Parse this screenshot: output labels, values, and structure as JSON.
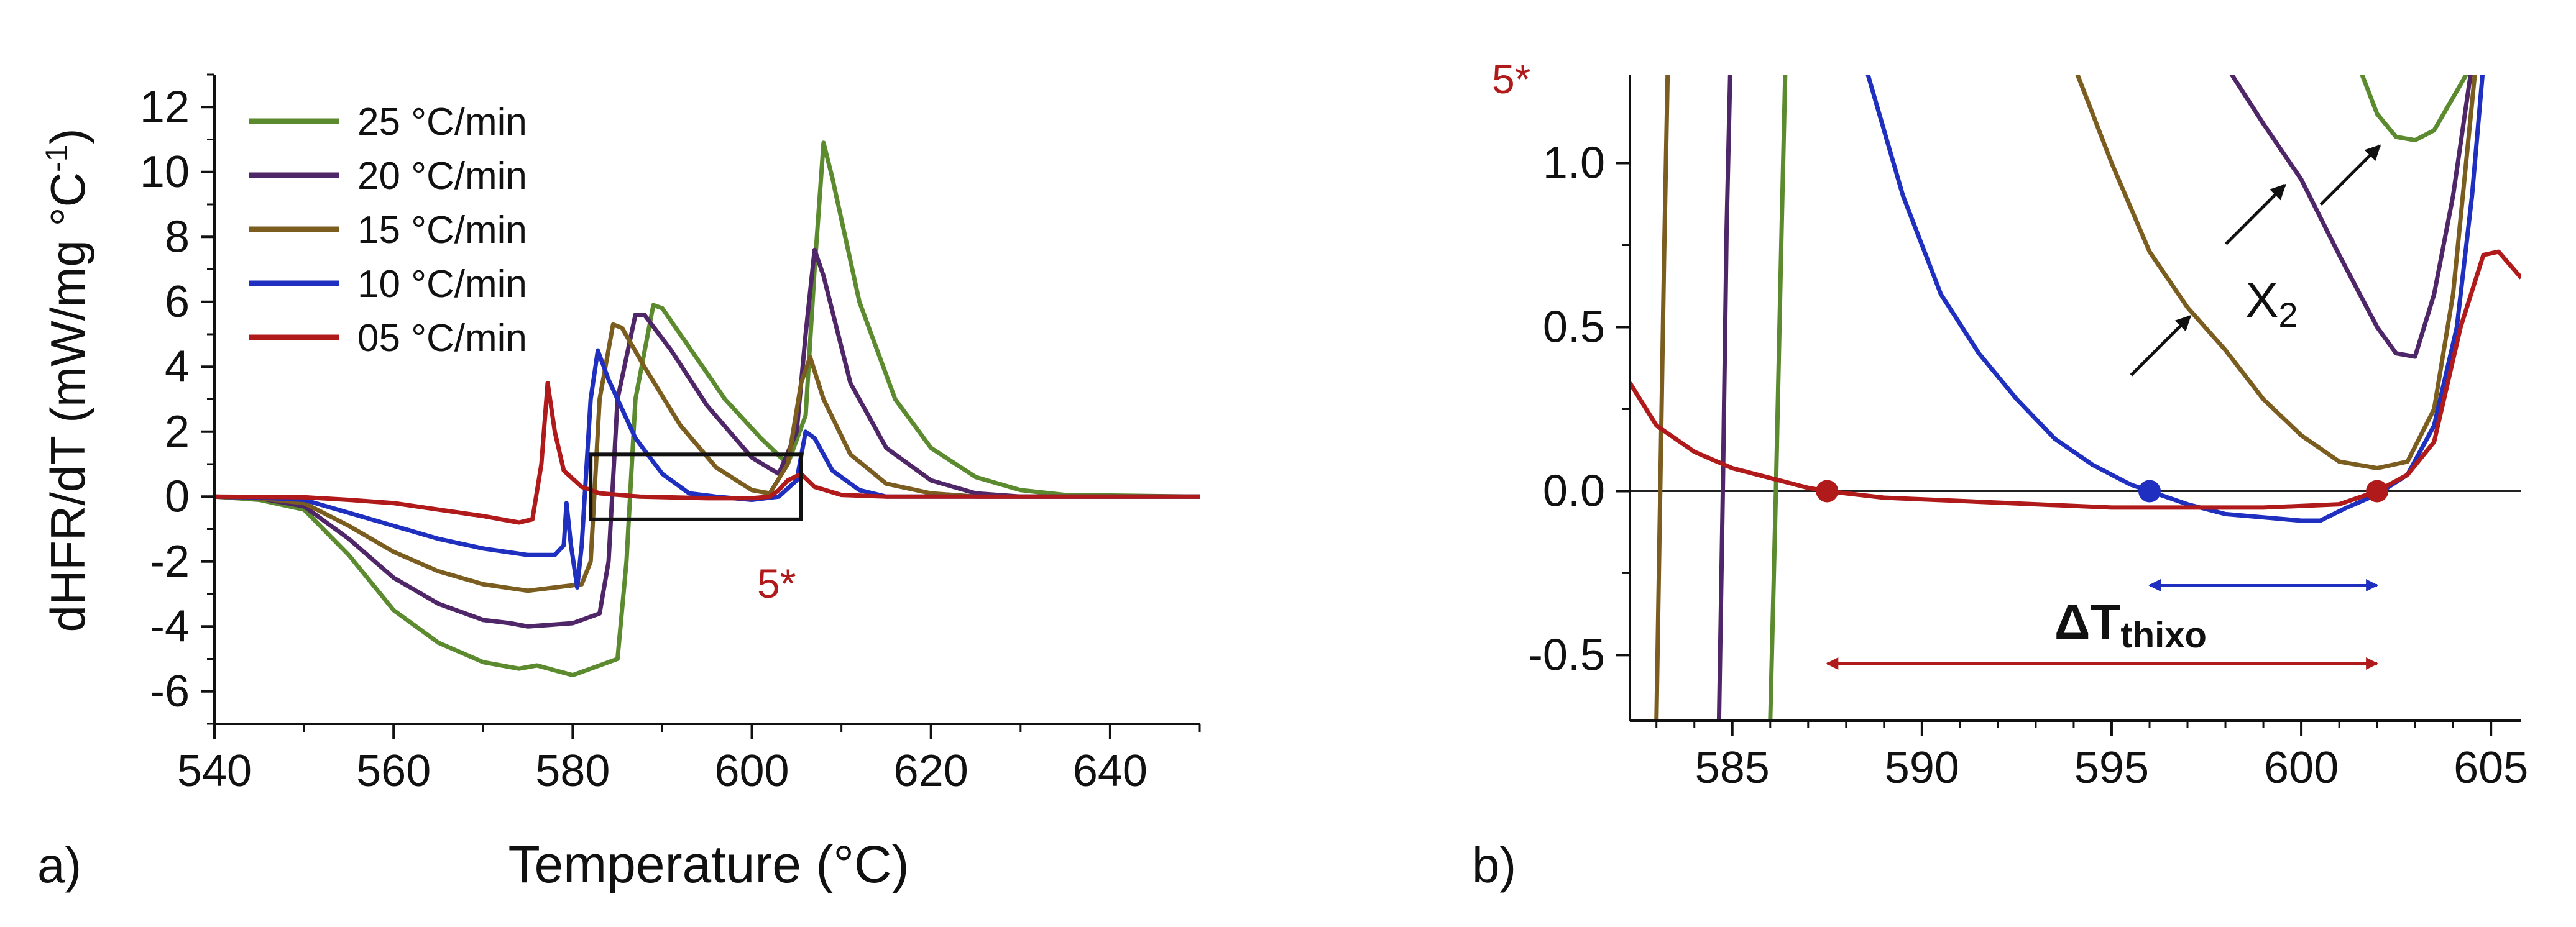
{
  "figure": {
    "panel_a_label": "a)",
    "panel_b_label": "b)"
  },
  "chart_data": [
    {
      "panel": "a",
      "type": "line",
      "xlabel": "Temperature (°C)",
      "ylabel_main": "dHFR/dT (mW/mg °C",
      "ylabel_sup": "-1",
      "ylabel_close": ")",
      "xlim": [
        540,
        650
      ],
      "ylim": [
        -7,
        13
      ],
      "xticks": [
        540,
        560,
        580,
        600,
        620,
        640
      ],
      "yticks": [
        12,
        10,
        8,
        6,
        4,
        2,
        0,
        -2,
        -4,
        -6
      ],
      "legend_position": "top-left",
      "annotation": "5*",
      "zoom_box": {
        "x": [
          582,
          605.5
        ],
        "y": [
          -0.7,
          1.3
        ]
      },
      "series": [
        {
          "name": "25 °C/min",
          "color": "#5c8a2e",
          "points": [
            [
              540,
              0
            ],
            [
              545,
              -0.1
            ],
            [
              550,
              -0.4
            ],
            [
              555,
              -1.8
            ],
            [
              560,
              -3.5
            ],
            [
              565,
              -4.5
            ],
            [
              570,
              -5.1
            ],
            [
              574,
              -5.3
            ],
            [
              576,
              -5.2
            ],
            [
              580,
              -5.5
            ],
            [
              583,
              -5.2
            ],
            [
              585,
              -5.0
            ],
            [
              586,
              -2.0
            ],
            [
              587,
              3.0
            ],
            [
              589,
              5.9
            ],
            [
              590,
              5.8
            ],
            [
              593,
              4.6
            ],
            [
              597,
              3.0
            ],
            [
              601,
              1.8
            ],
            [
              604,
              1.0
            ],
            [
              606,
              2.5
            ],
            [
              607,
              7.0
            ],
            [
              608,
              10.9
            ],
            [
              609,
              9.8
            ],
            [
              612,
              6.0
            ],
            [
              616,
              3.0
            ],
            [
              620,
              1.5
            ],
            [
              625,
              0.6
            ],
            [
              630,
              0.2
            ],
            [
              635,
              0.05
            ],
            [
              650,
              0
            ]
          ]
        },
        {
          "name": "20 °C/min",
          "color": "#4f2667",
          "points": [
            [
              540,
              0
            ],
            [
              545,
              -0.05
            ],
            [
              550,
              -0.3
            ],
            [
              555,
              -1.3
            ],
            [
              560,
              -2.5
            ],
            [
              565,
              -3.3
            ],
            [
              570,
              -3.8
            ],
            [
              573,
              -3.9
            ],
            [
              575,
              -4.0
            ],
            [
              580,
              -3.9
            ],
            [
              583,
              -3.6
            ],
            [
              584,
              -2.0
            ],
            [
              585,
              3.0
            ],
            [
              587,
              5.6
            ],
            [
              588,
              5.6
            ],
            [
              591,
              4.5
            ],
            [
              595,
              2.8
            ],
            [
              600,
              1.2
            ],
            [
              603,
              0.7
            ],
            [
              605,
              2.0
            ],
            [
              606,
              5.0
            ],
            [
              607,
              7.6
            ],
            [
              608,
              6.8
            ],
            [
              611,
              3.5
            ],
            [
              615,
              1.5
            ],
            [
              620,
              0.5
            ],
            [
              625,
              0.1
            ],
            [
              630,
              0
            ],
            [
              650,
              0
            ]
          ]
        },
        {
          "name": "15 °C/min",
          "color": "#7b5d1f",
          "points": [
            [
              540,
              0
            ],
            [
              545,
              -0.05
            ],
            [
              550,
              -0.2
            ],
            [
              555,
              -0.9
            ],
            [
              560,
              -1.7
            ],
            [
              565,
              -2.3
            ],
            [
              570,
              -2.7
            ],
            [
              575,
              -2.9
            ],
            [
              578,
              -2.8
            ],
            [
              581,
              -2.7
            ],
            [
              582,
              -2.0
            ],
            [
              583,
              3.0
            ],
            [
              584.5,
              5.3
            ],
            [
              585.5,
              5.2
            ],
            [
              588,
              4.0
            ],
            [
              592,
              2.2
            ],
            [
              596,
              0.9
            ],
            [
              600,
              0.2
            ],
            [
              602,
              0.1
            ],
            [
              604,
              1.0
            ],
            [
              605.5,
              3.5
            ],
            [
              606.5,
              4.3
            ],
            [
              608,
              3.0
            ],
            [
              611,
              1.3
            ],
            [
              615,
              0.4
            ],
            [
              620,
              0.1
            ],
            [
              625,
              0
            ],
            [
              650,
              0
            ]
          ]
        },
        {
          "name": "10 °C/min",
          "color": "#1f2fbf",
          "points": [
            [
              540,
              0
            ],
            [
              545,
              -0.03
            ],
            [
              550,
              -0.1
            ],
            [
              555,
              -0.5
            ],
            [
              560,
              -0.9
            ],
            [
              565,
              -1.3
            ],
            [
              570,
              -1.6
            ],
            [
              575,
              -1.8
            ],
            [
              578,
              -1.8
            ],
            [
              579,
              -1.5
            ],
            [
              579.3,
              -0.2
            ],
            [
              579.8,
              -1.5
            ],
            [
              580.5,
              -2.8
            ],
            [
              581,
              -1.5
            ],
            [
              582,
              3.0
            ],
            [
              582.8,
              4.5
            ],
            [
              584,
              3.6
            ],
            [
              587,
              1.8
            ],
            [
              590,
              0.7
            ],
            [
              593,
              0.1
            ],
            [
              596,
              0
            ],
            [
              600,
              -0.1
            ],
            [
              603,
              0
            ],
            [
              605,
              0.5
            ],
            [
              606,
              2.0
            ],
            [
              607,
              1.8
            ],
            [
              609,
              0.8
            ],
            [
              612,
              0.2
            ],
            [
              615,
              0
            ],
            [
              650,
              0
            ]
          ]
        },
        {
          "name": "05 °C/min",
          "color": "#b01a1a",
          "points": [
            [
              540,
              0
            ],
            [
              550,
              -0.02
            ],
            [
              555,
              -0.1
            ],
            [
              560,
              -0.2
            ],
            [
              565,
              -0.4
            ],
            [
              570,
              -0.6
            ],
            [
              574,
              -0.8
            ],
            [
              575.5,
              -0.7
            ],
            [
              576.5,
              1.0
            ],
            [
              577.2,
              3.5
            ],
            [
              578,
              2.0
            ],
            [
              579,
              0.8
            ],
            [
              581,
              0.3
            ],
            [
              583,
              0.1
            ],
            [
              587.5,
              0
            ],
            [
              595,
              -0.05
            ],
            [
              600,
              -0.05
            ],
            [
              602,
              0
            ],
            [
              603,
              0.2
            ],
            [
              604,
              0.5
            ],
            [
              605.5,
              0.7
            ],
            [
              607,
              0.3
            ],
            [
              610,
              0.05
            ],
            [
              615,
              0
            ],
            [
              650,
              0
            ]
          ]
        }
      ]
    },
    {
      "panel": "b",
      "type": "line",
      "xlabel": "",
      "ylabel": "",
      "xlim": [
        582.3,
        605.8
      ],
      "ylim": [
        -0.7,
        1.27
      ],
      "xticks": [
        585,
        590,
        595,
        600,
        605
      ],
      "ytick_labels": [
        "1.0",
        "0.5",
        "0.0",
        "-0.5"
      ],
      "yticks": [
        1.0,
        0.5,
        0.0,
        -0.5
      ],
      "annotation_5star": "5*",
      "annotation_x": "X",
      "annotation_x_sub": "2",
      "delta_label": "ΔT",
      "delta_sub": "thixo",
      "blue_span": [
        596,
        602
      ],
      "red_span": [
        587.5,
        602
      ],
      "markers": [
        {
          "x": 587.5,
          "y": 0,
          "color": "#b01a1a"
        },
        {
          "x": 596.0,
          "y": 0,
          "color": "#1f2fbf"
        },
        {
          "x": 602.0,
          "y": 0,
          "color": "#b01a1a"
        }
      ],
      "arrows": [
        {
          "target": [
            597.3,
            0.56
          ]
        },
        {
          "target": [
            599.8,
            0.96
          ]
        },
        {
          "target": [
            602.3,
            1.08
          ]
        }
      ],
      "series": [
        {
          "name": "25 °C/min",
          "color": "#5c8a2e",
          "points": [
            [
              586.0,
              -0.7
            ],
            [
              586.15,
              0.0
            ],
            [
              586.3,
              0.8
            ],
            [
              586.4,
              1.3
            ],
            [
              601.5,
              1.3
            ],
            [
              602.0,
              1.15
            ],
            [
              602.5,
              1.08
            ],
            [
              603.0,
              1.07
            ],
            [
              603.5,
              1.1
            ],
            [
              604.0,
              1.2
            ],
            [
              604.5,
              1.3
            ]
          ]
        },
        {
          "name": "20 °C/min",
          "color": "#4f2667",
          "points": [
            [
              584.65,
              -0.7
            ],
            [
              584.75,
              0.0
            ],
            [
              584.85,
              0.8
            ],
            [
              584.95,
              1.3
            ],
            [
              598.0,
              1.3
            ],
            [
              599.0,
              1.12
            ],
            [
              600.0,
              0.95
            ],
            [
              601.0,
              0.72
            ],
            [
              602.0,
              0.5
            ],
            [
              602.5,
              0.42
            ],
            [
              603.0,
              0.41
            ],
            [
              603.5,
              0.6
            ],
            [
              604.0,
              0.9
            ],
            [
              604.5,
              1.3
            ]
          ]
        },
        {
          "name": "15 °C/min",
          "color": "#7b5d1f",
          "points": [
            [
              583.0,
              -0.7
            ],
            [
              583.1,
              0.0
            ],
            [
              583.2,
              0.7
            ],
            [
              583.3,
              1.3
            ],
            [
              594.0,
              1.3
            ],
            [
              595.0,
              1.0
            ],
            [
              596.0,
              0.73
            ],
            [
              597.0,
              0.56
            ],
            [
              598.0,
              0.43
            ],
            [
              599.0,
              0.28
            ],
            [
              600.0,
              0.17
            ],
            [
              601.0,
              0.09
            ],
            [
              602.0,
              0.07
            ],
            [
              602.8,
              0.09
            ],
            [
              603.5,
              0.25
            ],
            [
              604.0,
              0.6
            ],
            [
              604.6,
              1.3
            ]
          ]
        },
        {
          "name": "10 °C/min",
          "color": "#1f2fbf",
          "points": [
            [
              588.5,
              1.3
            ],
            [
              589.5,
              0.9
            ],
            [
              590.5,
              0.6
            ],
            [
              591.5,
              0.42
            ],
            [
              592.5,
              0.28
            ],
            [
              593.5,
              0.16
            ],
            [
              594.5,
              0.08
            ],
            [
              595.5,
              0.02
            ],
            [
              596.0,
              0.0
            ],
            [
              597.0,
              -0.04
            ],
            [
              598.0,
              -0.07
            ],
            [
              599.0,
              -0.08
            ],
            [
              600.0,
              -0.09
            ],
            [
              600.5,
              -0.09
            ],
            [
              601.2,
              -0.05
            ],
            [
              602.0,
              -0.01
            ],
            [
              602.8,
              0.05
            ],
            [
              603.5,
              0.2
            ],
            [
              604.1,
              0.5
            ],
            [
              604.5,
              0.9
            ],
            [
              604.8,
              1.3
            ]
          ]
        },
        {
          "name": "05 °C/min",
          "color": "#b01a1a",
          "points": [
            [
              582.3,
              0.33
            ],
            [
              583.0,
              0.2
            ],
            [
              584.0,
              0.12
            ],
            [
              585.0,
              0.07
            ],
            [
              586.0,
              0.04
            ],
            [
              587.0,
              0.01
            ],
            [
              587.5,
              0.0
            ],
            [
              589.0,
              -0.02
            ],
            [
              591.0,
              -0.03
            ],
            [
              593.0,
              -0.04
            ],
            [
              595.0,
              -0.05
            ],
            [
              597.0,
              -0.05
            ],
            [
              599.0,
              -0.05
            ],
            [
              601.0,
              -0.04
            ],
            [
              602.0,
              0.0
            ],
            [
              602.8,
              0.05
            ],
            [
              603.5,
              0.15
            ],
            [
              604.2,
              0.5
            ],
            [
              604.8,
              0.72
            ],
            [
              605.2,
              0.73
            ],
            [
              605.8,
              0.65
            ]
          ]
        }
      ]
    }
  ]
}
